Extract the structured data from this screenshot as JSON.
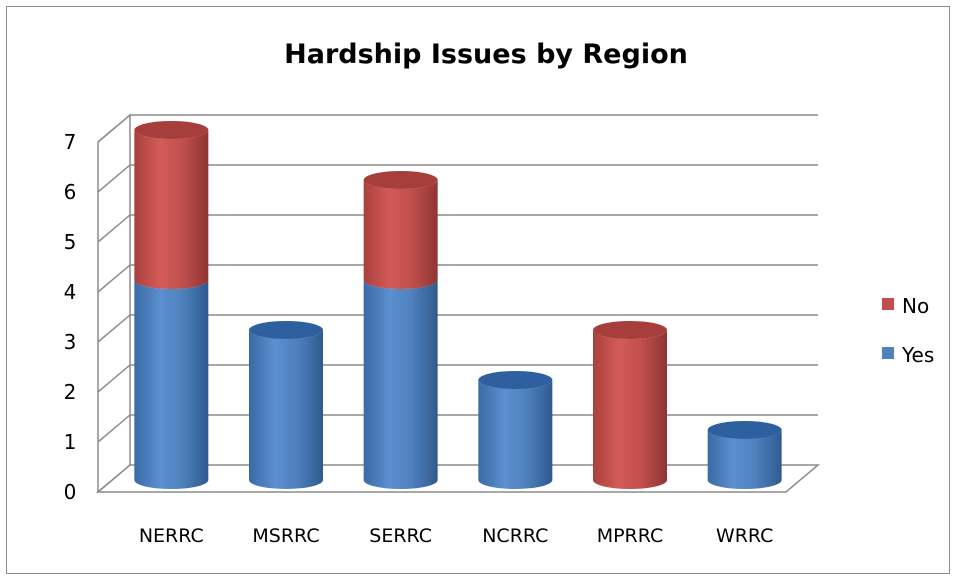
{
  "chart_data": {
    "type": "bar",
    "stacked": true,
    "three_d": true,
    "title": "Hardship Issues by Region",
    "categories": [
      "NERRC",
      "MSRRC",
      "SERRC",
      "NCRRC",
      "MPRRC",
      "WRRC"
    ],
    "series": [
      {
        "name": "Yes",
        "color": "#4F81BD",
        "values": [
          4,
          3,
          4,
          2,
          0,
          1
        ]
      },
      {
        "name": "No",
        "color": "#C0504D",
        "values": [
          3,
          0,
          2,
          0,
          3,
          0
        ]
      }
    ],
    "ylim": [
      0,
      7
    ],
    "yticks": [
      "0",
      "1",
      "2",
      "3",
      "4",
      "5",
      "6",
      "7"
    ],
    "grid": true,
    "legend_position": "right",
    "legend_order": [
      "No",
      "Yes"
    ]
  }
}
